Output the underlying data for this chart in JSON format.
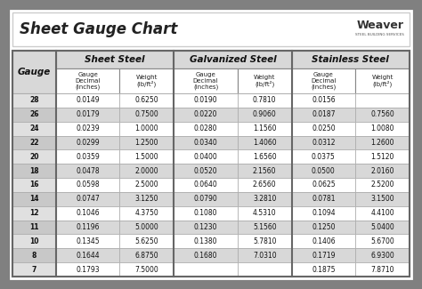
{
  "title": "Sheet Gauge Chart",
  "bg_outer": "#808080",
  "bg_inner": "#ffffff",
  "header_section_bg": "#d8d8d8",
  "row_bg_light": "#ffffff",
  "row_bg_dark": "#d8d8d8",
  "gauge_col_bg_light": "#e8e8e8",
  "gauge_col_bg_dark": "#c8c8c8",
  "gauges": [
    28,
    26,
    24,
    22,
    20,
    18,
    16,
    14,
    12,
    11,
    10,
    8,
    7
  ],
  "sheet_steel": {
    "decimal": [
      "0.0149",
      "0.0179",
      "0.0239",
      "0.0299",
      "0.0359",
      "0.0478",
      "0.0598",
      "0.0747",
      "0.1046",
      "0.1196",
      "0.1345",
      "0.1644",
      "0.1793"
    ],
    "weight": [
      "0.6250",
      "0.7500",
      "1.0000",
      "1.2500",
      "1.5000",
      "2.0000",
      "2.5000",
      "3.1250",
      "4.3750",
      "5.0000",
      "5.6250",
      "6.8750",
      "7.5000"
    ]
  },
  "galvanized_steel": {
    "decimal": [
      "0.0190",
      "0.0220",
      "0.0280",
      "0.0340",
      "0.0400",
      "0.0520",
      "0.0640",
      "0.0790",
      "0.1080",
      "0.1230",
      "0.1380",
      "0.1680",
      ""
    ],
    "weight": [
      "0.7810",
      "0.9060",
      "1.1560",
      "1.4060",
      "1.6560",
      "2.1560",
      "2.6560",
      "3.2810",
      "4.5310",
      "5.1560",
      "5.7810",
      "7.0310",
      ""
    ]
  },
  "stainless_steel": {
    "decimal": [
      "0.0156",
      "0.0187",
      "0.0250",
      "0.0312",
      "0.0375",
      "0.0500",
      "0.0625",
      "0.0781",
      "0.1094",
      "0.1250",
      "0.1406",
      "0.1719",
      "0.1875"
    ],
    "weight": [
      "",
      "0.7560",
      "1.0080",
      "1.2600",
      "1.5120",
      "2.0160",
      "2.5200",
      "3.1500",
      "4.4100",
      "5.0400",
      "5.6700",
      "6.9300",
      "7.8710"
    ]
  },
  "col_labels": [
    "Gauge",
    "Gauge\nDecimal\n(inches)",
    "Weight\n(lb/ft²)",
    "Gauge\nDecimal\n(inches)",
    "Weight\n(lb/ft²)",
    "Gauge\nDecimal\n(inches)",
    "Weight\n(lb/ft²)"
  ],
  "section_labels": [
    "Sheet Steel",
    "Galvanized Steel",
    "Stainless Steel"
  ]
}
